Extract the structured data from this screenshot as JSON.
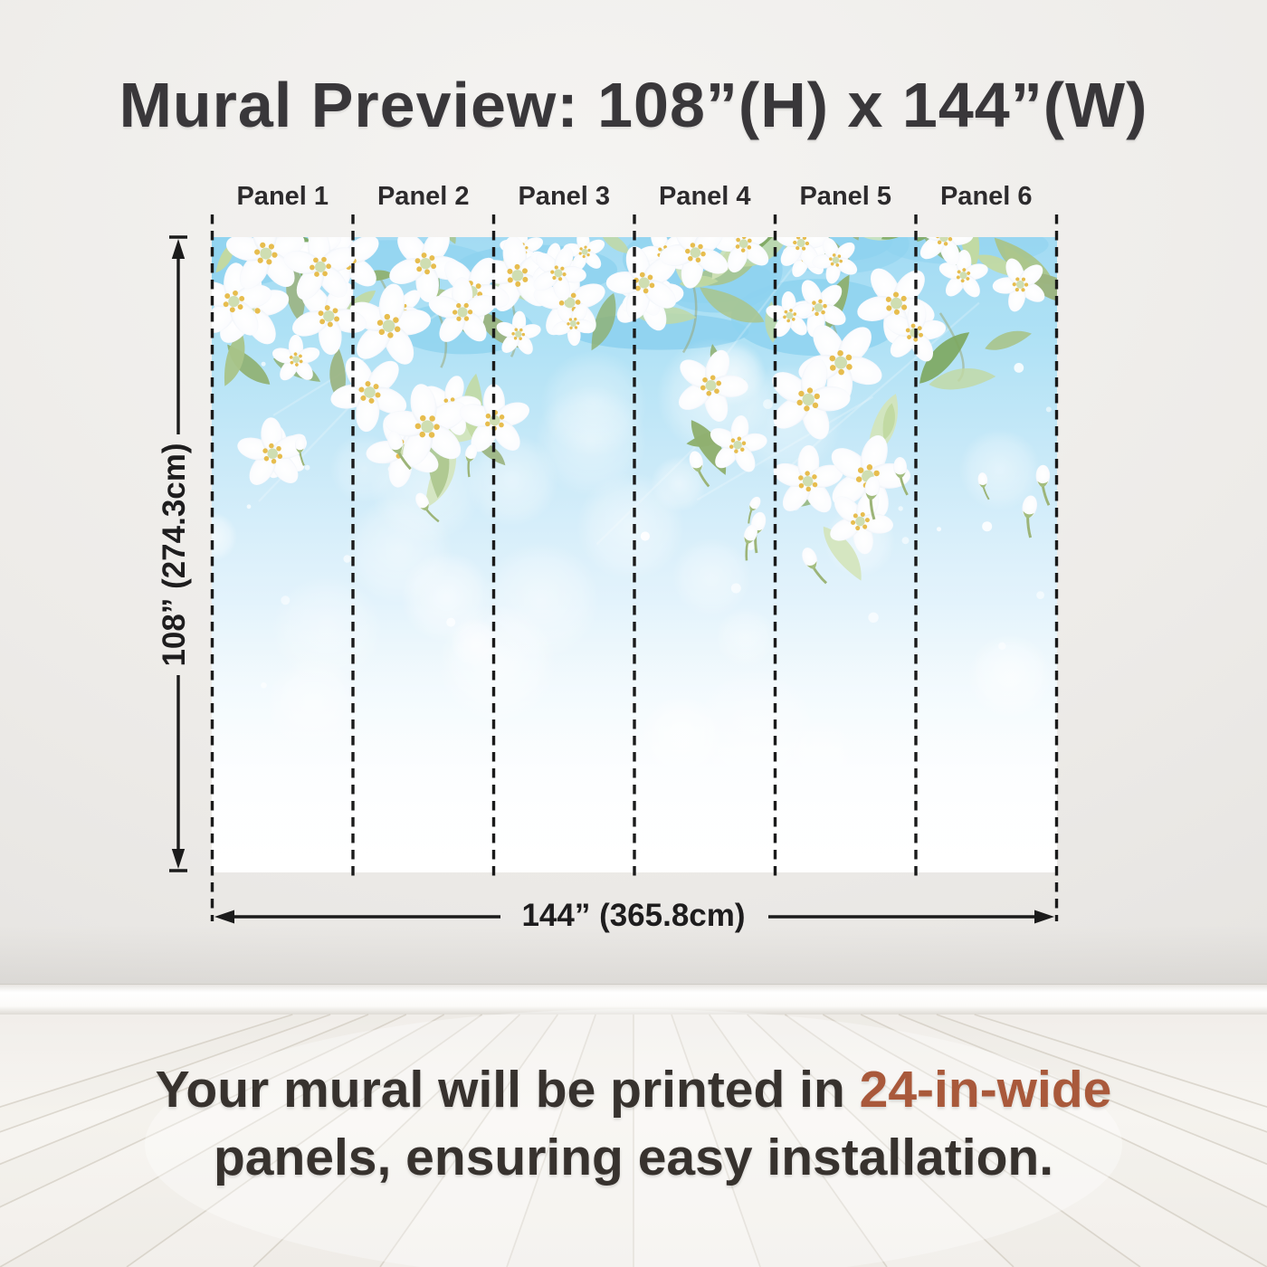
{
  "title": "Mural Preview: 108”(H) x 144”(W)",
  "panels": {
    "count": 6,
    "labels": [
      "Panel 1",
      "Panel 2",
      "Panel 3",
      "Panel 4",
      "Panel 5",
      "Panel 6"
    ]
  },
  "dimensions": {
    "height_label": "108” (274.3cm)",
    "width_label": "144” (365.8cm)"
  },
  "footer": {
    "line1_prefix": "Your mural will be printed in ",
    "highlight": "24-in-wide",
    "line2": "panels, ensuring easy installation."
  },
  "colors": {
    "accent_text": "#a9593b",
    "heading_text": "#39373a",
    "body_text": "#37322e",
    "annotation": "#1b1b1b",
    "wall": "#edebe8",
    "baseboard": "#fcfbf9",
    "floor": "#f4f1ed",
    "floor_seam": "#c8c1b4",
    "sky_top": "#a3dbf3",
    "sky_deep": "#8ed2ef",
    "sky_mid": "#def1fb",
    "sky_bottom": "#ffffff",
    "leaf_greens": [
      "#a9c489",
      "#c2d9a2",
      "#8fb070",
      "#d3e4b8",
      "#9bb37e",
      "#7ea861"
    ],
    "petal_white": "#ffffff",
    "petal_edge": "#e7edf5",
    "stamen_yellow": "#e7bd4e",
    "flower_center": "#ccdcae"
  }
}
